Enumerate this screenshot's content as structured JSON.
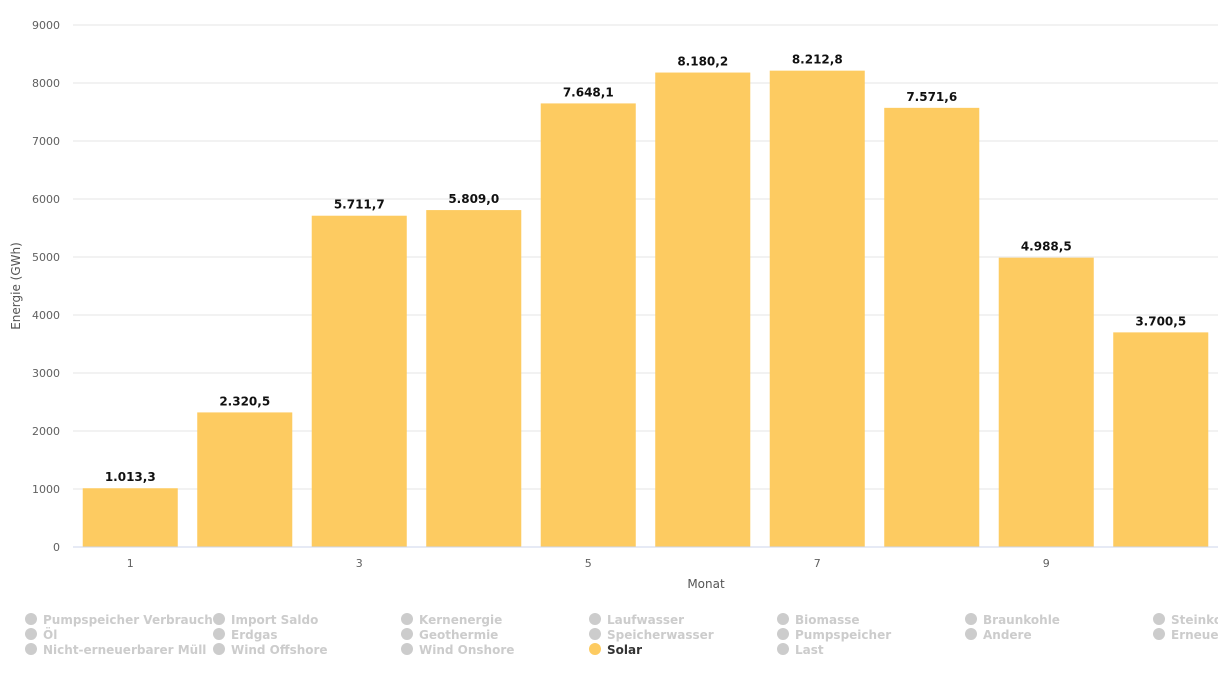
{
  "chart_data": {
    "type": "bar",
    "x": [
      1,
      2,
      3,
      4,
      5,
      6,
      7,
      8,
      9,
      10
    ],
    "x_tick_labels": [
      "1",
      "3",
      "5",
      "7",
      "9"
    ],
    "series": [
      {
        "name": "Solar",
        "color": "#fdcb61",
        "values": [
          1013.3,
          2320.5,
          5711.7,
          5809.0,
          7648.1,
          8180.2,
          8212.8,
          7571.6,
          4988.5,
          3700.5
        ],
        "labels": [
          "1.013,3",
          "2.320,5",
          "5.711,7",
          "5.809,0",
          "7.648,1",
          "8.180,2",
          "8.212,8",
          "7.571,6",
          "4.988,5",
          "3.700,5"
        ]
      }
    ],
    "xlabel": "Monat",
    "ylabel": "Energie (GWh)",
    "ylim": [
      0,
      9000
    ],
    "y_ticks": [
      0,
      1000,
      2000,
      3000,
      4000,
      5000,
      6000,
      7000,
      8000,
      9000
    ],
    "grid": true,
    "legend_placement": "bottom"
  },
  "legend": {
    "inactive_color": "#cccccc",
    "active_color": "#fdcb61",
    "columns": [
      [
        "Pumpspeicher Verbrauch",
        "Öl",
        "Nicht-erneuerbarer Müll"
      ],
      [
        "Import Saldo",
        "Erdgas",
        "Wind Offshore"
      ],
      [
        "Kernenergie",
        "Geothermie",
        "Wind Onshore"
      ],
      [
        "Laufwasser",
        "Speicherwasser",
        "Solar"
      ],
      [
        "Biomasse",
        "Pumpspeicher",
        "Last"
      ],
      [
        "Braunkohle",
        "Andere"
      ],
      [
        "Steinkohle",
        "Erneuerbarer Müll"
      ]
    ],
    "active": [
      "Solar"
    ]
  }
}
